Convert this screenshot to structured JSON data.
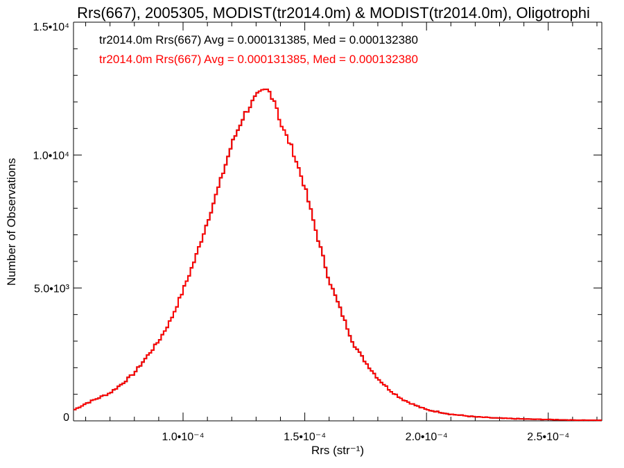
{
  "chart_data": {
    "type": "line",
    "title": "Rrs(667), 2005305, MODIST(tr2014.0m) & MODIST(tr2014.0m), Oligotrophi",
    "xlabel": "Rrs (str⁻¹)",
    "ylabel": "Number of Observations",
    "xlim": [
      5.5e-05,
      0.000272
    ],
    "ylim": [
      0,
      15000
    ],
    "x_ticks": [
      {
        "value": 0.0001,
        "label": "1.0•10⁻⁴"
      },
      {
        "value": 0.00015,
        "label": "1.5•10⁻⁴"
      },
      {
        "value": 0.0002,
        "label": "2.0•10⁻⁴"
      },
      {
        "value": 0.00025,
        "label": "2.5•10⁻⁴"
      }
    ],
    "y_ticks": [
      {
        "value": 0,
        "label": "0"
      },
      {
        "value": 5000,
        "label": "5.0•10³"
      },
      {
        "value": 10000,
        "label": "1.0•10⁴"
      },
      {
        "value": 15000,
        "label": "1.5•10⁴"
      }
    ],
    "grid": false,
    "legend_placement": "top-left",
    "legend": [
      {
        "text": "tr2014.0m Rrs(667) Avg = 0.000131385, Med = 0.000132380",
        "color": "#000000"
      },
      {
        "text": "tr2014.0m Rrs(667) Avg = 0.000131385, Med = 0.000132380",
        "color": "#ff0000"
      }
    ],
    "series": [
      {
        "color": "#ff0000",
        "style": "step",
        "x": [
          5.5e-05,
          6e-05,
          6.5e-05,
          7e-05,
          7.5e-05,
          8e-05,
          8.5e-05,
          9e-05,
          9.5e-05,
          0.0001,
          0.000105,
          0.00011,
          0.000115,
          0.00012,
          0.000125,
          0.00013,
          0.000133,
          0.000135,
          0.000138,
          0.00014,
          0.000145,
          0.00015,
          0.000155,
          0.00016,
          0.000165,
          0.00017,
          0.000175,
          0.00018,
          0.000185,
          0.00019,
          0.000195,
          0.0002,
          0.00021,
          0.00022,
          0.00023,
          0.00024,
          0.00025,
          0.00026,
          0.000272
        ],
        "y": [
          400,
          650,
          850,
          1050,
          1400,
          1800,
          2400,
          3000,
          3800,
          4900,
          6100,
          7500,
          8900,
          10400,
          11500,
          12200,
          12400,
          12450,
          12000,
          11200,
          10200,
          8800,
          7000,
          5300,
          4100,
          2900,
          2200,
          1600,
          1150,
          820,
          600,
          420,
          250,
          150,
          100,
          70,
          50,
          30,
          20
        ]
      }
    ]
  }
}
